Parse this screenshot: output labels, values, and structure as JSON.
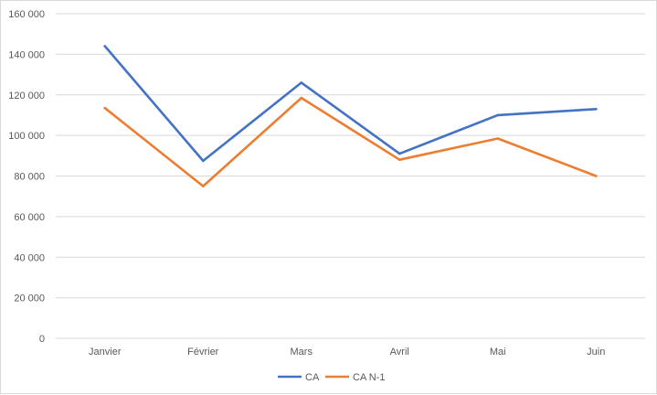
{
  "chart_data": {
    "type": "line",
    "title": "",
    "xlabel": "",
    "ylabel": "",
    "categories": [
      "Janvier",
      "Février",
      "Mars",
      "Avril",
      "Mai",
      "Juin"
    ],
    "ylim": [
      0,
      160000
    ],
    "yticks": [
      0,
      20000,
      40000,
      60000,
      80000,
      100000,
      120000,
      140000,
      160000
    ],
    "ytick_labels": [
      "0",
      "20 000",
      "40 000",
      "60 000",
      "80 000",
      "100 000",
      "120 000",
      "140 000",
      "160 000"
    ],
    "grid": true,
    "legend_position": "bottom",
    "series": [
      {
        "name": "CA",
        "color": "#4472C4",
        "values": [
          144000,
          87500,
          126000,
          91000,
          110000,
          113000
        ]
      },
      {
        "name": "CA N-1",
        "color": "#ED7D31",
        "values": [
          113500,
          75000,
          118500,
          88000,
          98500,
          80000
        ]
      }
    ]
  }
}
